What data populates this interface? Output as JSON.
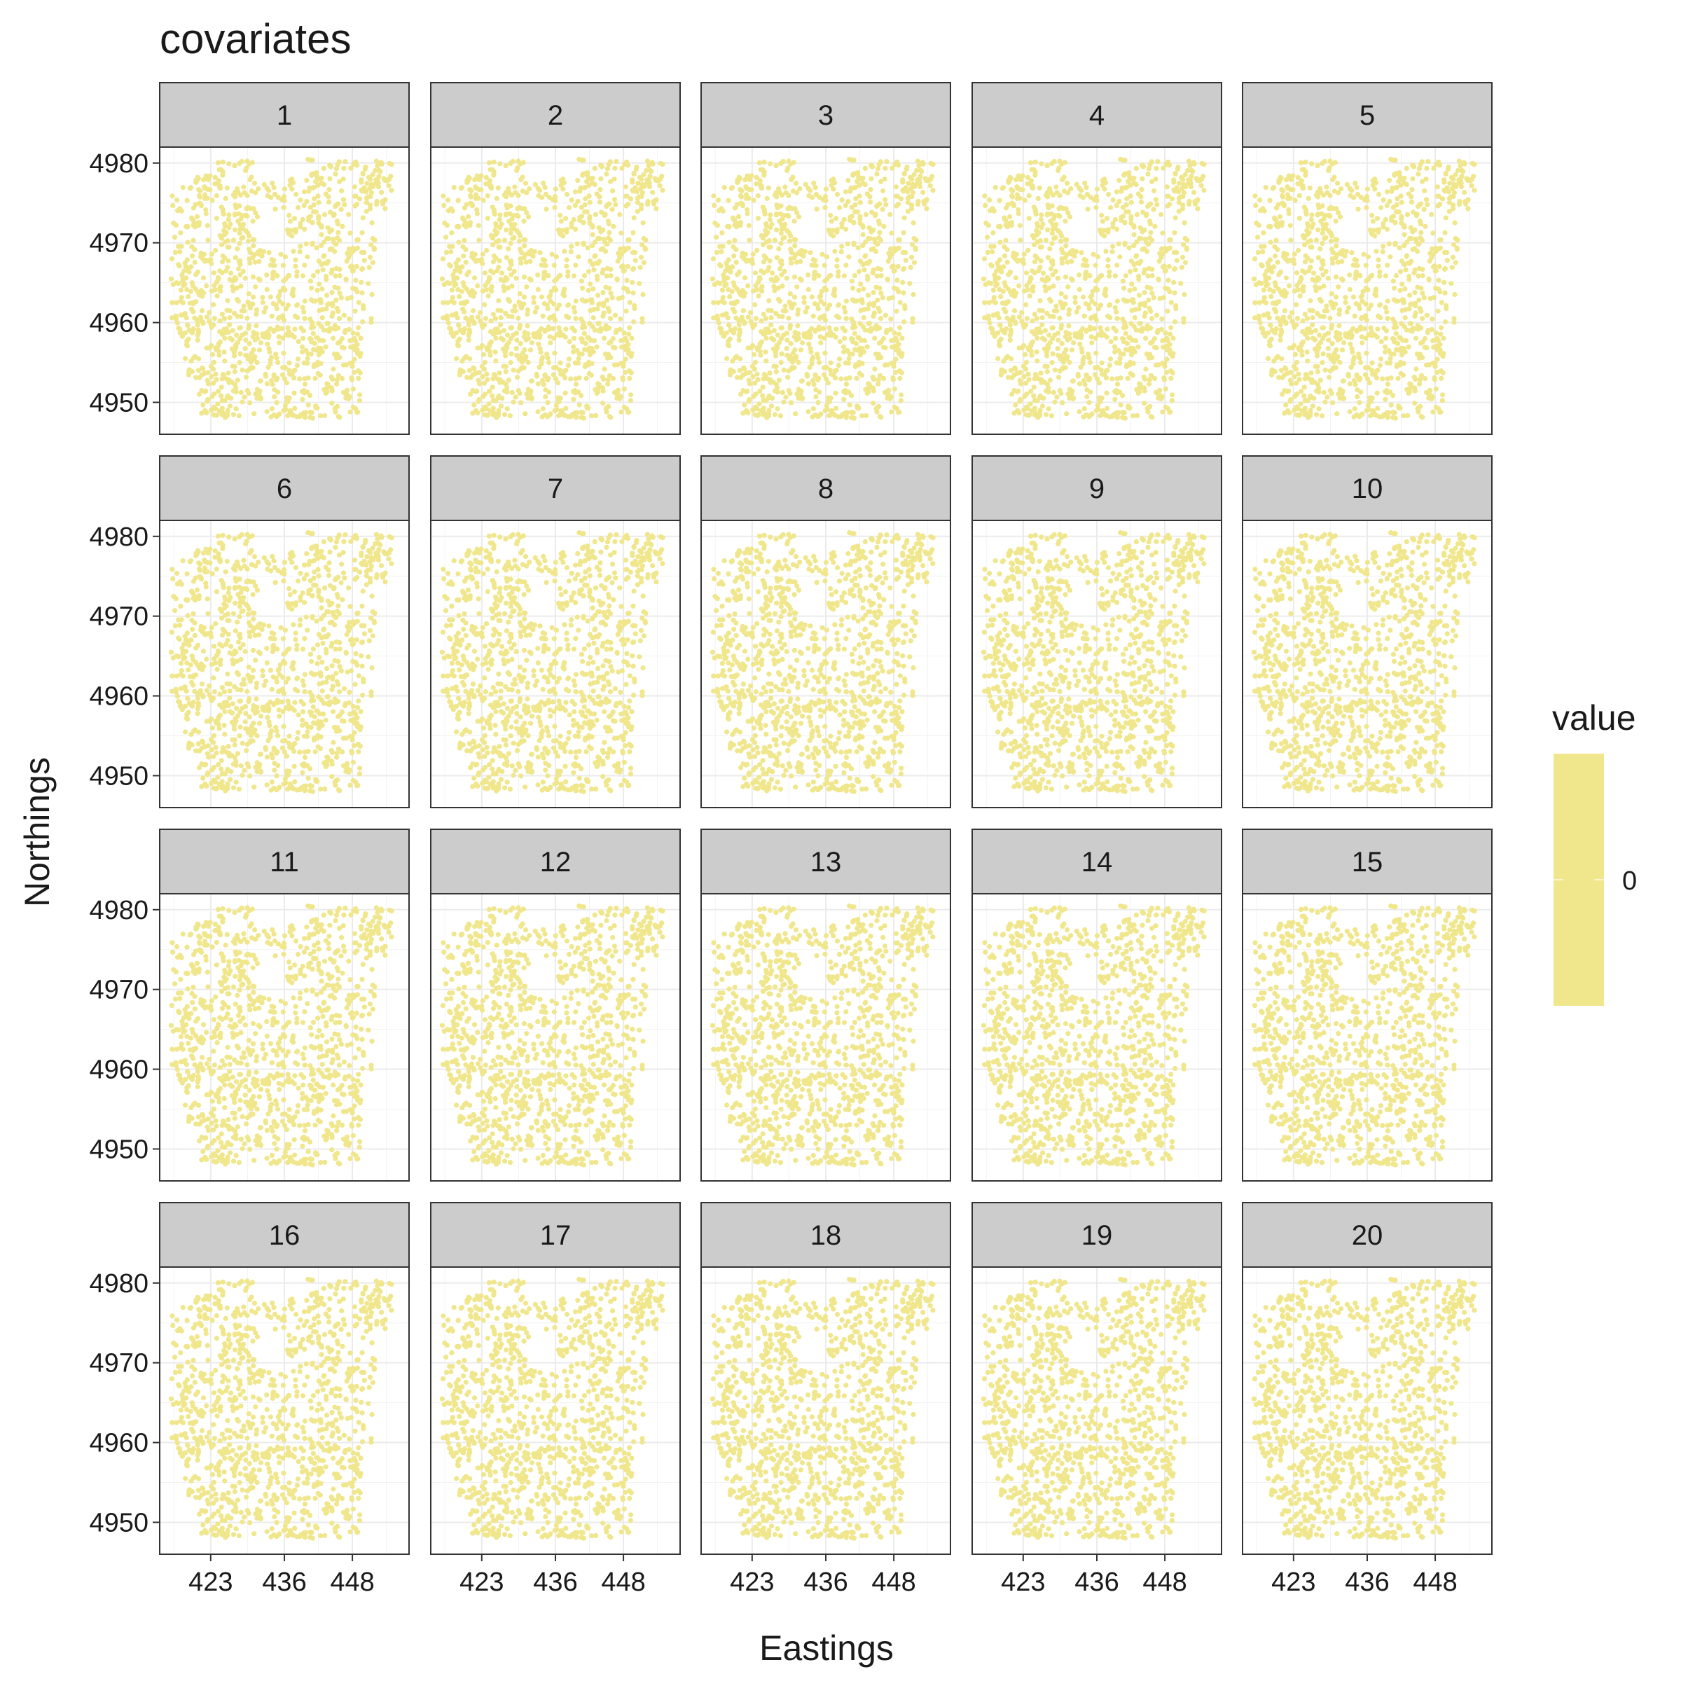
{
  "chart_data": {
    "type": "scatter",
    "title": "covariates",
    "xlabel": "Eastings",
    "ylabel": "Northings",
    "facets": [
      "1",
      "2",
      "3",
      "4",
      "5",
      "6",
      "7",
      "8",
      "9",
      "10",
      "11",
      "12",
      "13",
      "14",
      "15",
      "16",
      "17",
      "18",
      "19",
      "20"
    ],
    "facet_layout": {
      "rows": 4,
      "cols": 5
    },
    "xlim": [
      414,
      458
    ],
    "ylim": [
      4946,
      4982
    ],
    "x_ticks": [
      423,
      436,
      448
    ],
    "x_tick_labels": [
      "423",
      "436",
      "448"
    ],
    "y_ticks": [
      4950,
      4960,
      4970,
      4980
    ],
    "y_tick_labels": [
      "4950",
      "4960",
      "4970",
      "4980"
    ],
    "grid": true,
    "point_color": "#f0e68c",
    "strip_color": "#cccccc",
    "legend": {
      "title": "value",
      "position": "right",
      "color": "#f0e68c",
      "labels": [
        "0"
      ]
    }
  }
}
